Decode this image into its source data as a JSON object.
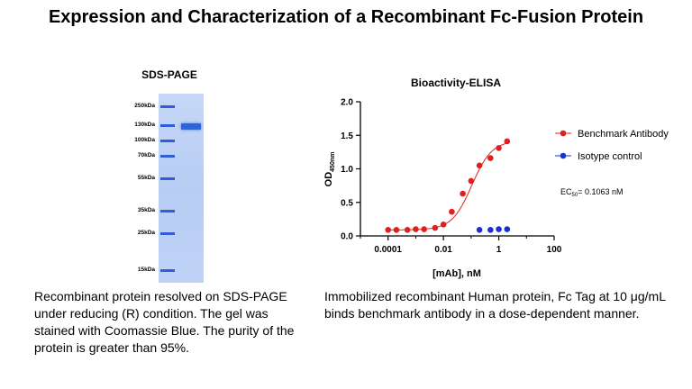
{
  "page_title": "Expression and Characterization of a Recombinant Fc-Fusion Protein",
  "gel": {
    "title": "SDS-PAGE",
    "markers": [
      "250kDa",
      "130kDa",
      "100kDa",
      "70kDa",
      "55kDa",
      "35kDa",
      "25kDa",
      "15kDa"
    ]
  },
  "captions": {
    "left": "Recombinant protein resolved on SDS-PAGE under reducing (R) condition. The gel was stained with Coomassie Blue. The purity of the protein is greater than 95%.",
    "right": "Immobilized recombinant Human protein, Fc Tag at 10 μg/mL binds benchmark antibody in a dose-dependent manner."
  },
  "chart_data": {
    "type": "scatter",
    "title": "Bioactivity-ELISA",
    "xlabel": "[mAb], nM",
    "ylabel_main": "OD",
    "ylabel_sub": "450nm",
    "xscale": "log",
    "xlim": [
      1e-05,
      100
    ],
    "ylim": [
      0,
      2.0
    ],
    "xticks": [
      0.0001,
      0.01,
      1,
      100
    ],
    "xtick_labels": [
      "0.0001",
      "0.01",
      "1",
      "100"
    ],
    "yticks": [
      0,
      0.5,
      1.0,
      1.5,
      2.0
    ],
    "ytick_labels": [
      "0.0",
      "0.5",
      "1.0",
      "1.5",
      "2.0"
    ],
    "legend_position": "right",
    "annotation_main": "EC",
    "annotation_sub": "50",
    "annotation_rest": "= 0.1063 nM",
    "series": [
      {
        "name": "Benchmark Antibody",
        "color": "#e02020",
        "x": [
          0.0001,
          0.0002,
          0.0005,
          0.001,
          0.002,
          0.005,
          0.01,
          0.02,
          0.05,
          0.1,
          0.2,
          0.5,
          1.0,
          2.0
        ],
        "y": [
          0.09,
          0.09,
          0.09,
          0.1,
          0.1,
          0.12,
          0.17,
          0.36,
          0.63,
          0.82,
          1.05,
          1.16,
          1.31,
          1.41
        ],
        "fit": {
          "bottom": 0.09,
          "top": 1.42,
          "ec50": 0.1063,
          "hill": 1.2
        }
      },
      {
        "name": "Isotype control",
        "color": "#1a2fd6",
        "x": [
          0.2,
          0.5,
          1.0,
          2.0
        ],
        "y": [
          0.09,
          0.09,
          0.1,
          0.1
        ]
      }
    ]
  }
}
